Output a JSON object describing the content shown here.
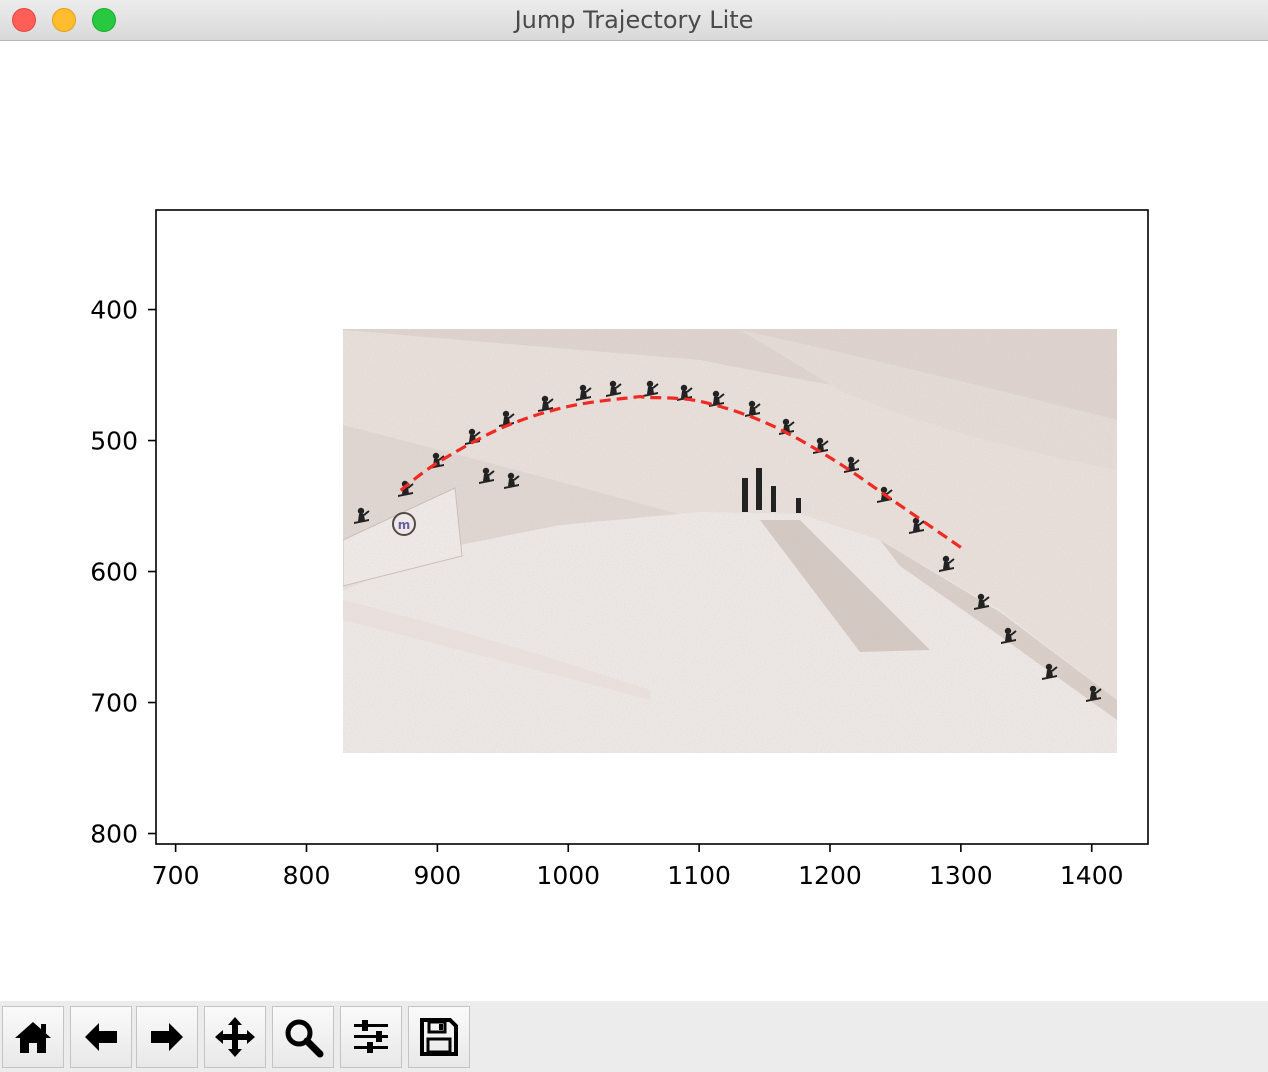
{
  "window": {
    "title": "Jump Trajectory Lite"
  },
  "toolbar": {
    "buttons": [
      {
        "icon": "home-icon"
      },
      {
        "icon": "back-arrow-icon"
      },
      {
        "icon": "forward-arrow-icon"
      },
      {
        "icon": "pan-icon"
      },
      {
        "icon": "zoom-icon"
      },
      {
        "icon": "sliders-icon"
      },
      {
        "icon": "save-icon"
      }
    ]
  },
  "chart_data": {
    "type": "line",
    "title": "",
    "xlabel": "",
    "ylabel": "",
    "xlim": [
      685,
      1443
    ],
    "ylim": [
      808,
      324
    ],
    "y_inverted": true,
    "grid": false,
    "x_ticks": [
      700,
      800,
      900,
      1000,
      1100,
      1200,
      1300,
      1400
    ],
    "y_ticks": [
      400,
      500,
      600,
      700,
      800
    ],
    "image_extent": {
      "x": [
        828,
        1418
      ],
      "y": [
        413,
        738
      ]
    },
    "series": [
      {
        "color": "#ee2a22",
        "linestyle": "dashed",
        "x": [
          872,
          900,
          950,
          1000,
          1050,
          1060,
          1100,
          1150,
          1200,
          1250,
          1302
        ],
        "y": [
          538,
          517,
          490,
          474,
          467,
          467,
          470,
          486,
          513,
          547,
          583
        ]
      }
    ]
  }
}
